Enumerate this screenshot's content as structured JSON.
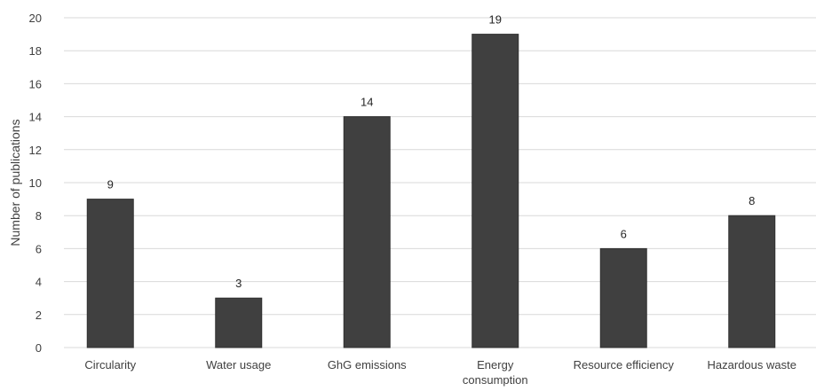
{
  "chart_data": {
    "type": "bar",
    "categories": [
      "Circularity",
      "Water usage",
      "GhG emissions",
      "Energy consumption",
      "Resource efficiency",
      "Hazardous waste"
    ],
    "category_lines": [
      [
        "Circularity"
      ],
      [
        "Water usage"
      ],
      [
        "GhG emissions"
      ],
      [
        "Energy",
        "consumption"
      ],
      [
        "Resource efficiency"
      ],
      [
        "Hazardous waste"
      ]
    ],
    "values": [
      9,
      3,
      14,
      19,
      6,
      8
    ],
    "data_labels": [
      "9",
      "3",
      "14",
      "19",
      "6",
      "8"
    ],
    "title": "",
    "xlabel": "",
    "ylabel": "Number of publications",
    "ylim": [
      0,
      20
    ],
    "yticks": [
      0,
      2,
      4,
      6,
      8,
      10,
      12,
      14,
      16,
      18,
      20
    ],
    "grid": "horizontal",
    "legend": "none",
    "bar_color": "#404040",
    "grid_color": "#d9d9d9",
    "text_color": "#404040"
  }
}
